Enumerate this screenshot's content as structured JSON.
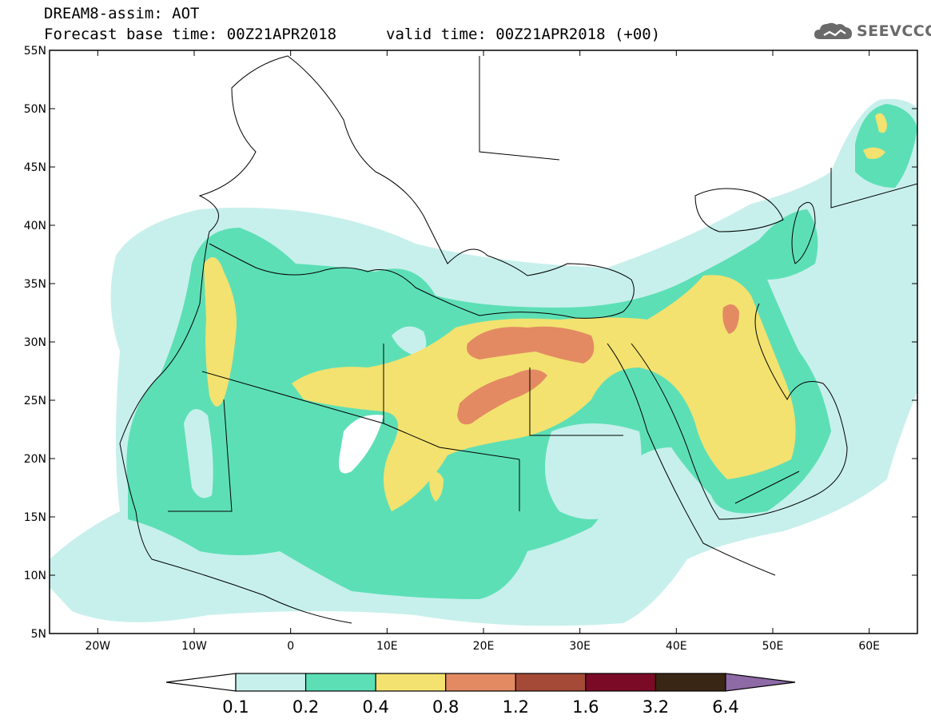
{
  "header": {
    "line1": "DREAM8-assim: AOT",
    "line2": "Forecast base time: 00Z21APR2018",
    "line3": "valid time: 00Z21APR2018 (+00)"
  },
  "logo": {
    "text": "SEEVCCC",
    "icon": "cloud-logo-icon",
    "color": "#6a6a6a"
  },
  "map": {
    "lon_range": [
      -25,
      65
    ],
    "lat_range": [
      5,
      55
    ],
    "lon_ticks": [
      {
        "value": -20,
        "label": "20W"
      },
      {
        "value": -10,
        "label": "10W"
      },
      {
        "value": 0,
        "label": "0"
      },
      {
        "value": 10,
        "label": "10E"
      },
      {
        "value": 20,
        "label": "20E"
      },
      {
        "value": 30,
        "label": "30E"
      },
      {
        "value": 40,
        "label": "40E"
      },
      {
        "value": 50,
        "label": "50E"
      },
      {
        "value": 60,
        "label": "60E"
      }
    ],
    "lat_ticks": [
      {
        "value": 5,
        "label": "5N"
      },
      {
        "value": 10,
        "label": "10N"
      },
      {
        "value": 15,
        "label": "15N"
      },
      {
        "value": 20,
        "label": "20N"
      },
      {
        "value": 25,
        "label": "25N"
      },
      {
        "value": 30,
        "label": "30N"
      },
      {
        "value": 35,
        "label": "35N"
      },
      {
        "value": 40,
        "label": "40N"
      },
      {
        "value": 45,
        "label": "45N"
      },
      {
        "value": 50,
        "label": "50N"
      },
      {
        "value": 55,
        "label": "55N"
      }
    ],
    "levels": [
      {
        "lo": 0.1,
        "hi": 0.2,
        "color": "#c7f0ec"
      },
      {
        "lo": 0.2,
        "hi": 0.4,
        "color": "#5ddfb6"
      },
      {
        "lo": 0.4,
        "hi": 0.8,
        "color": "#f3e26f"
      },
      {
        "lo": 0.8,
        "hi": 1.2,
        "color": "#e38a63"
      },
      {
        "lo": 1.2,
        "hi": 1.6,
        "color": "#a54a36"
      },
      {
        "lo": 1.6,
        "hi": 3.2,
        "color": "#7a0a25"
      },
      {
        "lo": 3.2,
        "hi": 6.4,
        "color": "#3a2614"
      }
    ],
    "overflow_color": "#8e6aa6",
    "underflow_color": "#ffffff"
  },
  "colorbar": {
    "labels": [
      "0.1",
      "0.2",
      "0.4",
      "0.8",
      "1.2",
      "1.6",
      "3.2",
      "6.4"
    ]
  }
}
